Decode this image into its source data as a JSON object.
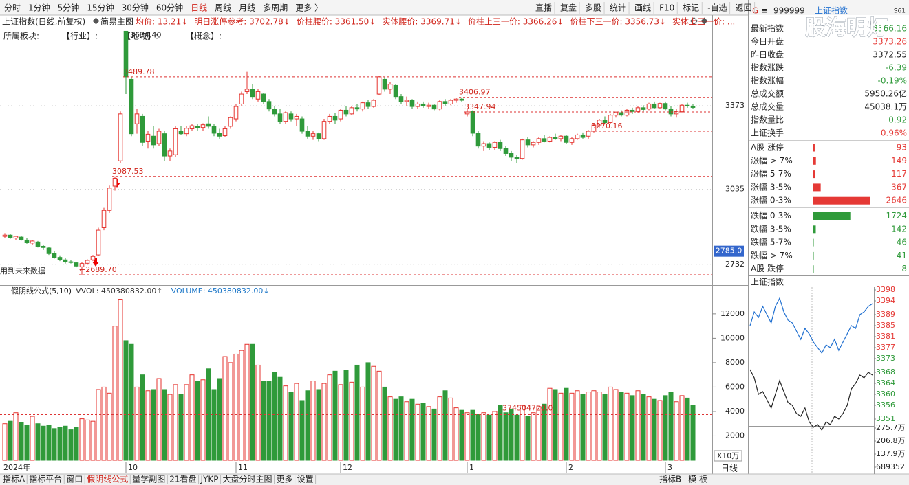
{
  "toolbar": {
    "periods": [
      "分时",
      "1分钟",
      "5分钟",
      "15分钟",
      "30分钟",
      "60分钟",
      "日线",
      "周线",
      "月线",
      "多周期",
      "更多 〉"
    ],
    "tools": [
      "直播",
      "复盘",
      "多股",
      "统计",
      "画线",
      "F10",
      "标记",
      "-自选",
      "返回"
    ]
  },
  "sector_bar": [
    "所属板块:",
    "【行业】:",
    "【地域】:",
    "【概念】:"
  ],
  "chart_data": [
    {
      "type": "candlestick",
      "title": "上证指数(日线,前复权)",
      "mode": "简易主图",
      "info_items": [
        "均价: 13.21↓",
        "明日涨停参考: 3702.78↓",
        "价柱腰价: 3361.50↓",
        "实体腰价: 3369.71↓",
        "价柱上三一价: 3366.26↓",
        "价柱下三一价: 3356.73↓",
        "实体上三一价: ..."
      ],
      "categories": [
        "2024年",
        null,
        null,
        null,
        null,
        null,
        null,
        null,
        null,
        null,
        null,
        null,
        null,
        null,
        null,
        null,
        null,
        null,
        null,
        null,
        null,
        null,
        "10",
        null,
        null,
        null,
        null,
        null,
        null,
        null,
        null,
        null,
        null,
        null,
        null,
        null,
        null,
        null,
        null,
        null,
        null,
        null,
        "11",
        null,
        null,
        null,
        null,
        null,
        null,
        null,
        null,
        null,
        null,
        null,
        null,
        null,
        null,
        null,
        null,
        null,
        null,
        "12",
        null,
        null,
        null,
        null,
        null,
        null,
        null,
        null,
        null,
        null,
        null,
        null,
        null,
        null,
        null,
        null,
        null,
        null,
        null,
        null,
        null,
        null,
        "1",
        null,
        null,
        null,
        null,
        null,
        null,
        null,
        null,
        null,
        null,
        null,
        null,
        null,
        null,
        null,
        null,
        null,
        "2",
        null,
        null,
        null,
        null,
        null,
        null,
        null,
        null,
        null,
        null,
        null,
        null,
        null,
        null,
        null,
        null,
        null,
        "3",
        null,
        null,
        null,
        null,
        null
      ],
      "open": [
        2845,
        2850,
        2838,
        2842,
        2830,
        2818,
        2822,
        2805,
        2798,
        2775,
        2760,
        2750,
        2742,
        2738,
        2722,
        2736,
        2750,
        2770,
        2880,
        2950,
        3048,
        3150,
        3674.4,
        3480,
        3300,
        3330,
        3230,
        3250,
        3220,
        3260,
        3170,
        3175,
        3270,
        3260,
        3280,
        3290,
        3285,
        3300,
        3290,
        3262,
        3252,
        3290,
        3320,
        3380,
        3430,
        3440,
        3400,
        3420,
        3390,
        3360,
        3340,
        3310,
        3340,
        3320,
        3320,
        3270,
        3250,
        3260,
        3240,
        3310,
        3330,
        3320,
        3355,
        3340,
        3365,
        3360,
        3385,
        3370,
        3420,
        3480,
        3440,
        3455,
        3410,
        3390,
        3395,
        3370,
        3380,
        3370,
        3375,
        3360,
        3390,
        3380,
        3395,
        3400,
        3340,
        3350,
        3262,
        3210,
        3220,
        3205,
        3225,
        3200,
        3180,
        3165,
        3160,
        3235,
        3215,
        3225,
        3240,
        3230,
        3245,
        3240,
        3250,
        3225,
        3240,
        3255,
        3250,
        3270.16,
        3295,
        3315,
        3305,
        3335,
        3345,
        3335,
        3355,
        3350,
        3365,
        3360,
        3380,
        3365,
        3382,
        3360,
        3340,
        3350,
        3375,
        3370
      ],
      "high": [
        2858,
        2855,
        2848,
        2846,
        2838,
        2830,
        2826,
        2812,
        2802,
        2785,
        2768,
        2758,
        2748,
        2742,
        2740,
        2752,
        2770,
        2880,
        2960,
        3050,
        3087.53,
        3350,
        3674.4,
        3490,
        3360,
        3340,
        3270,
        3290,
        3280,
        3270,
        3200,
        3290,
        3290,
        3290,
        3300,
        3300,
        3302,
        3330,
        3300,
        3280,
        3290,
        3330,
        3380,
        3430,
        3510,
        3460,
        3440,
        3425,
        3400,
        3370,
        3360,
        3350,
        3350,
        3340,
        3330,
        3290,
        3270,
        3265,
        3320,
        3340,
        3345,
        3360,
        3370,
        3370,
        3380,
        3390,
        3395,
        3400,
        3495,
        3490,
        3470,
        3460,
        3420,
        3410,
        3400,
        3390,
        3390,
        3385,
        3380,
        3395,
        3400,
        3400,
        3405,
        3406.97,
        3360,
        3355,
        3270,
        3230,
        3225,
        3230,
        3235,
        3210,
        3190,
        3175,
        3240,
        3245,
        3230,
        3245,
        3255,
        3250,
        3260,
        3255,
        3255,
        3245,
        3260,
        3265,
        3275,
        3300,
        3320,
        3330,
        3340,
        3350,
        3355,
        3360,
        3365,
        3370,
        3375,
        3385,
        3390,
        3385,
        3390,
        3370,
        3360,
        3380,
        3385,
        3380
      ],
      "low": [
        2838,
        2835,
        2830,
        2828,
        2815,
        2810,
        2800,
        2790,
        2770,
        2755,
        2745,
        2735,
        2735,
        2720,
        2689.7,
        2730,
        2745,
        2765,
        2870,
        2940,
        3030,
        3140,
        3420,
        3250,
        3260,
        3210,
        3200,
        3200,
        3210,
        3150,
        3150,
        3165,
        3255,
        3250,
        3270,
        3270,
        3270,
        3280,
        3250,
        3240,
        3245,
        3280,
        3310,
        3370,
        3420,
        3400,
        3390,
        3380,
        3350,
        3330,
        3300,
        3300,
        3310,
        3290,
        3260,
        3240,
        3235,
        3230,
        3235,
        3300,
        3300,
        3310,
        3330,
        3335,
        3350,
        3350,
        3360,
        3365,
        3415,
        3430,
        3420,
        3400,
        3380,
        3370,
        3360,
        3360,
        3365,
        3360,
        3355,
        3355,
        3370,
        3375,
        3385,
        3390,
        3330,
        3250,
        3200,
        3190,
        3195,
        3195,
        3190,
        3170,
        3150,
        3140,
        3155,
        3205,
        3205,
        3215,
        3225,
        3225,
        3235,
        3230,
        3220,
        3215,
        3235,
        3240,
        3240,
        3265,
        3285,
        3300,
        3300,
        3325,
        3330,
        3330,
        3340,
        3345,
        3350,
        3355,
        3360,
        3360,
        3355,
        3330,
        3325,
        3345,
        3365,
        3360
      ],
      "close": [
        2850,
        2840,
        2845,
        2832,
        2820,
        2826,
        2805,
        2800,
        2775,
        2760,
        2750,
        2742,
        2740,
        2725,
        2735,
        2748,
        2764,
        2870,
        2950,
        3040,
        3080,
        3340,
        3489.78,
        3260,
        3340,
        3225,
        3258,
        3215,
        3270,
        3170,
        3190,
        3280,
        3260,
        3282,
        3292,
        3285,
        3296,
        3290,
        3262,
        3250,
        3280,
        3325,
        3370,
        3420,
        3440,
        3410,
        3430,
        3390,
        3360,
        3340,
        3310,
        3345,
        3320,
        3330,
        3270,
        3250,
        3260,
        3240,
        3310,
        3330,
        3315,
        3355,
        3340,
        3365,
        3360,
        3385,
        3370,
        3395,
        3490,
        3440,
        3460,
        3410,
        3390,
        3395,
        3370,
        3380,
        3372,
        3375,
        3360,
        3390,
        3380,
        3395,
        3400,
        3395,
        3347.94,
        3262,
        3210,
        3220,
        3205,
        3225,
        3200,
        3180,
        3165,
        3160,
        3235,
        3215,
        3225,
        3240,
        3230,
        3245,
        3240,
        3250,
        3225,
        3240,
        3255,
        3245,
        3270,
        3295,
        3315,
        3305,
        3335,
        3345,
        3335,
        3355,
        3350,
        3365,
        3358,
        3380,
        3365,
        3382,
        3360,
        3340,
        3350,
        3375,
        3372,
        3366.16
      ],
      "up_color": "#e5322d",
      "down_color": "#2f9a3a",
      "ylim": [
        2648,
        3684
      ],
      "yticks": [
        3373,
        3035,
        2732
      ],
      "grid": true,
      "levels": [
        {
          "value": 3489.78,
          "label": "3489.78"
        },
        {
          "value": 3406.97,
          "label": "3406.97"
        },
        {
          "value": 3347.94,
          "label": "3347.94"
        },
        {
          "value": 3270.16,
          "label": "3270.16"
        },
        {
          "value": 3087.53,
          "label": "3087.53"
        },
        {
          "value": 2689.7,
          "label": "←2689.70"
        }
      ],
      "peak_label": {
        "value": 3674.4,
        "label": "3674.40"
      },
      "cursor_label": {
        "value": 2785.0,
        "label": "2785.0"
      },
      "annotation": "用到未来数据"
    },
    {
      "type": "bar",
      "title": "假阴线公式(5,10)",
      "indicators": [
        {
          "text": "VVOL: 450380832.00↑",
          "color": "#333333"
        },
        {
          "text": "VOLUME: 450380832.00↓",
          "color": "#1f78c8"
        }
      ],
      "values": [
        3000,
        3200,
        3900,
        3100,
        2900,
        3600,
        3000,
        2800,
        2900,
        2600,
        2700,
        2800,
        2500,
        2700,
        3400,
        3300,
        3200,
        5800,
        6000,
        5500,
        11000,
        13200,
        9800,
        9500,
        6000,
        7000,
        5700,
        5800,
        6700,
        5800,
        5400,
        6200,
        5400,
        6200,
        7000,
        6500,
        6600,
        7500,
        5800,
        6700,
        8500,
        8000,
        8700,
        9000,
        9500,
        9500,
        7800,
        6500,
        6500,
        7200,
        6800,
        6100,
        5600,
        6300,
        4900,
        5700,
        6500,
        5800,
        6300,
        7000,
        7300,
        6200,
        7400,
        6400,
        7800,
        6000,
        8000,
        7700,
        7300,
        6000,
        5200,
        5000,
        5200,
        4800,
        5000,
        4600,
        4700,
        4400,
        4200,
        5200,
        5700,
        5100,
        4300,
        4100,
        3900,
        4100,
        3800,
        3900,
        3700,
        4000,
        4500,
        3900,
        4200,
        3700,
        4500,
        3600,
        3900,
        4400,
        4600,
        5900,
        5800,
        5500,
        5900,
        5500,
        5700,
        5400,
        5600,
        5700,
        5600,
        5400,
        6000,
        5800,
        5600,
        5500,
        5300,
        5700,
        5400,
        5200,
        5000,
        4900,
        5300,
        5600,
        4800,
        5300,
        5100,
        4500
      ],
      "ylim": [
        0,
        13400
      ],
      "yticks": [
        12000,
        10000,
        8000,
        6000,
        4000,
        2000
      ],
      "unit_label": "X10万",
      "level": {
        "value": 3745.0472,
        "label": "374504720.0"
      }
    },
    {
      "type": "hbar",
      "categories": [
        "A股 涨停",
        "涨幅 > 7%",
        "涨幅 5-7%",
        "涨幅 3-5%",
        "涨幅 0-3%",
        "跌幅 0-3%",
        "跌幅 3-5%",
        "跌幅 5-7%",
        "跌幅 > 7%",
        "A股 跌停"
      ],
      "values": [
        93,
        149,
        117,
        367,
        2646,
        1724,
        142,
        46,
        41,
        8
      ],
      "colors": [
        "#e53935",
        "#e53935",
        "#e53935",
        "#e53935",
        "#e53935",
        "#2f9a3a",
        "#2f9a3a",
        "#2f9a3a",
        "#2f9a3a",
        "#2f9a3a"
      ]
    },
    {
      "type": "line",
      "title": "上证指数",
      "series": [
        {
          "color": "#1f6fd0",
          "values": [
            3385,
            3390,
            3388,
            3392,
            3389,
            3386,
            3392,
            3395,
            3390,
            3387,
            3386,
            3383,
            3380,
            3384,
            3382,
            3379,
            3377,
            3375,
            3378,
            3377,
            3380,
            3376,
            3379,
            3382,
            3385,
            3384,
            3389,
            3390,
            3392,
            3393
          ]
        },
        {
          "color": "#222222",
          "values": [
            3369,
            3366,
            3360,
            3361,
            3358,
            3355,
            3360,
            3365,
            3361,
            3357,
            3356,
            3353,
            3352,
            3355,
            3350,
            3348,
            3349,
            3347,
            3350,
            3349,
            3352,
            3351,
            3353,
            3356,
            3362,
            3364,
            3367,
            3366,
            3368,
            3367
          ]
        }
      ],
      "ylim": [
        3349,
        3399
      ],
      "yticks": [
        3398,
        3394,
        3389,
        3385,
        3381,
        3377,
        3373,
        3368,
        3364,
        3360,
        3356,
        3351
      ],
      "y2lim": [
        0,
        2757000
      ],
      "y2ticks": [
        {
          "value": 2757000,
          "label": "275.7万"
        },
        {
          "value": 2068000,
          "label": "206.8万"
        },
        {
          "value": 1379000,
          "label": "137.9万"
        },
        689352
      ]
    }
  ],
  "quote": {
    "tag": "G",
    "code": "999999",
    "name": "上证指数",
    "flag": "S61",
    "watermark": "股海明灯",
    "rows": [
      {
        "label": "最新指数",
        "value": "3366.16",
        "color": "#2f9a3a"
      },
      {
        "label": "今日开盘",
        "value": "3373.26",
        "color": "#e53935"
      },
      {
        "label": "昨日收盘",
        "value": "3372.55",
        "color": "#222222"
      },
      {
        "label": "指数涨跌",
        "value": "-6.39",
        "color": "#2f9a3a"
      },
      {
        "label": "指数涨幅",
        "value": "-0.19%",
        "color": "#2f9a3a"
      },
      {
        "label": "总成交额",
        "value": "5950.26亿",
        "color": "#222222"
      },
      {
        "label": "总成交量",
        "value": "45038.1万",
        "color": "#222222"
      },
      {
        "label": "指数量比",
        "value": "0.92",
        "color": "#2f9a3a"
      },
      {
        "label": "上证换手",
        "value": "0.96%",
        "color": "#e53935"
      }
    ]
  },
  "bottom_bar": {
    "tabs": [
      "指标A",
      "指标平台",
      "窗口",
      "假阴线公式",
      "量学副图",
      "21看盘",
      "JYKP",
      "大盘分时主图",
      "更多",
      "设置"
    ],
    "right_tabs": [
      "指标B",
      "模 板"
    ],
    "period": "日线"
  }
}
